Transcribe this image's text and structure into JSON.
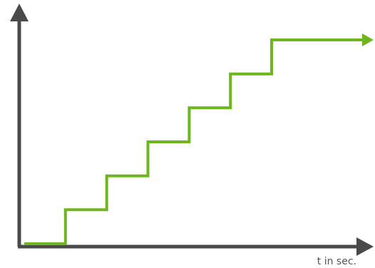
{
  "chart_data": {
    "type": "line",
    "title": "",
    "xlabel": "t in sec.",
    "ylabel": "",
    "step": true,
    "grid": false,
    "axis_ticks": false,
    "arrowheads": true,
    "xlim": [
      0,
      10
    ],
    "ylim": [
      0,
      6
    ],
    "series": [
      {
        "x": [
          0,
          1.2,
          1.2,
          2.4,
          2.4,
          3.6,
          3.6,
          4.8,
          4.8,
          6.0,
          6.0,
          7.2,
          7.2,
          10
        ],
        "y": [
          0,
          0,
          1,
          1,
          2,
          2,
          3,
          3,
          4,
          4,
          5,
          5,
          6,
          6
        ],
        "color": "#6eb51e"
      }
    ]
  },
  "colors": {
    "axis": "#4a4a4a",
    "series": "#6eb51e"
  }
}
